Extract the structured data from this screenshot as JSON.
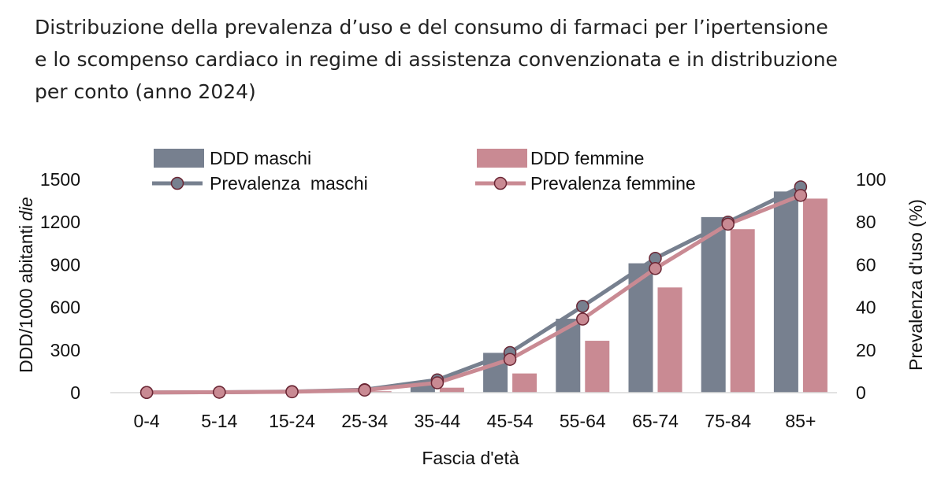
{
  "title_lines": [
    "Distribuzione della prevalenza d’uso e del consumo di farmaci per l’ipertensione",
    "e lo scompenso cardiaco in regime di assistenza convenzionata e in distribuzione",
    "per conto (anno 2024)"
  ],
  "colors": {
    "maschi": "#77808f",
    "femmine": "#c98a93",
    "marker_fill": "#c98a93",
    "marker_stroke": "#6b2735"
  },
  "chart_data": {
    "type": "bar+line",
    "title": "Distribuzione della prevalenza d’uso e del consumo di farmaci per l’ipertensione e lo scompenso cardiaco in regime di assistenza convenzionata e in distribuzione per conto (anno 2024)",
    "categories": [
      "0-4",
      "5-14",
      "15-24",
      "25-34",
      "35-44",
      "45-54",
      "55-64",
      "65-74",
      "75-84",
      "85+"
    ],
    "xlabel": "Fascia d'età",
    "ylabel_left": "DDD/1000 abitanti",
    "ylabel_left_italic": "die",
    "ylabel_right": "Prevalenza d'uso (%)",
    "ylim_left": [
      0,
      1500
    ],
    "yticks_left": [
      0,
      300,
      600,
      900,
      1200,
      1500
    ],
    "ylim_right": [
      0,
      100
    ],
    "yticks_right": [
      0,
      20,
      40,
      60,
      80,
      100
    ],
    "bar_series": [
      {
        "name": "DDD maschi",
        "values": [
          1,
          2,
          5,
          15,
          60,
          280,
          520,
          910,
          1235,
          1415
        ]
      },
      {
        "name": "DDD femmine",
        "values": [
          1,
          2,
          4,
          10,
          35,
          135,
          365,
          740,
          1150,
          1365
        ]
      }
    ],
    "line_series": [
      {
        "name": "Prevalenza  maschi",
        "values": [
          0.1,
          0.2,
          0.5,
          1.4,
          6.0,
          18.8,
          40.5,
          63.0,
          80.0,
          96.5
        ]
      },
      {
        "name": "Prevalenza femmine",
        "values": [
          0.1,
          0.2,
          0.4,
          1.2,
          4.6,
          15.6,
          34.5,
          58.2,
          79.0,
          92.5
        ]
      }
    ],
    "legend": {
      "ddd_maschi": "DDD maschi",
      "ddd_femmine": "DDD femmine",
      "prev_maschi": "Prevalenza  maschi",
      "prev_femmine": "Prevalenza femmine"
    },
    "legend_position": "top"
  }
}
